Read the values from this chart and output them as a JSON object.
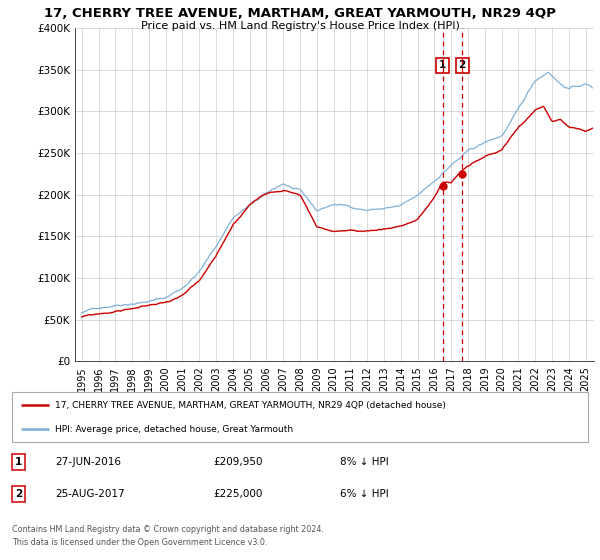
{
  "title": "17, CHERRY TREE AVENUE, MARTHAM, GREAT YARMOUTH, NR29 4QP",
  "subtitle": "Price paid vs. HM Land Registry's House Price Index (HPI)",
  "legend_label_red": "17, CHERRY TREE AVENUE, MARTHAM, GREAT YARMOUTH, NR29 4QP (detached house)",
  "legend_label_blue": "HPI: Average price, detached house, Great Yarmouth",
  "annotation1_label": "1",
  "annotation1_date": "27-JUN-2016",
  "annotation1_price": "£209,950",
  "annotation1_hpi": "8% ↓ HPI",
  "annotation2_label": "2",
  "annotation2_date": "25-AUG-2017",
  "annotation2_price": "£225,000",
  "annotation2_hpi": "6% ↓ HPI",
  "footer1": "Contains HM Land Registry data © Crown copyright and database right 2024.",
  "footer2": "This data is licensed under the Open Government Licence v3.0.",
  "red_color": "#cc0000",
  "blue_color": "#7aaed6",
  "marker_color": "#cc0000",
  "vline_color": "#cc0000",
  "grid_color": "#cccccc",
  "background_color": "#ffffff",
  "ylim": [
    0,
    400000
  ],
  "yticks": [
    0,
    50000,
    100000,
    150000,
    200000,
    250000,
    300000,
    350000,
    400000
  ],
  "ytick_labels": [
    "£0",
    "£50K",
    "£100K",
    "£150K",
    "£200K",
    "£250K",
    "£300K",
    "£350K",
    "£400K"
  ],
  "xlim_start": 1994.6,
  "xlim_end": 2025.5,
  "sale1_year": 2016.49,
  "sale1_price": 209950,
  "sale2_year": 2017.65,
  "sale2_price": 225000
}
